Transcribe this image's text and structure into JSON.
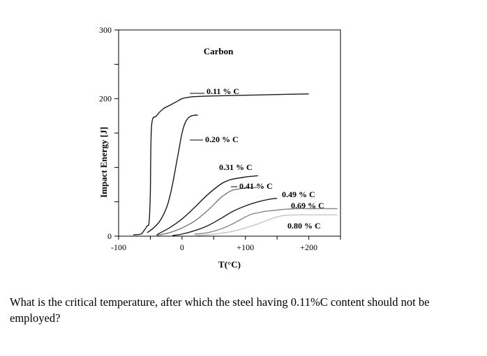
{
  "chart_data": {
    "type": "line",
    "title": "Carbon",
    "xlabel": "T(°C)",
    "ylabel": "Impact Energy [J]",
    "xlim": [
      -100,
      250
    ],
    "ylim": [
      0,
      300
    ],
    "x_ticks": [
      -100,
      0,
      100,
      200
    ],
    "x_tick_labels": [
      "-100",
      "0",
      "+100",
      "+200"
    ],
    "y_ticks": [
      0,
      100,
      200,
      300
    ],
    "y_tick_labels": [
      "0",
      "",
      "200",
      "300"
    ],
    "grid": false,
    "legend": "none",
    "series": [
      {
        "name": "0.11 % C",
        "color": "#1a1a1a",
        "x": [
          -77,
          -65,
          -60,
          -55,
          -52,
          -50,
          -48,
          -40,
          -30,
          -20,
          -10,
          0,
          10,
          20,
          50,
          100,
          150,
          200
        ],
        "y": [
          2,
          3,
          8,
          15,
          20,
          60,
          160,
          175,
          185,
          190,
          195,
          200,
          202,
          203,
          204,
          205,
          206,
          207
        ]
      },
      {
        "name": "0.20 % C",
        "color": "#1a1a1a",
        "x": [
          -55,
          -45,
          -35,
          -25,
          -20,
          -15,
          -10,
          -5,
          0,
          5,
          10,
          15,
          20,
          25
        ],
        "y": [
          5,
          12,
          22,
          40,
          55,
          75,
          100,
          125,
          150,
          165,
          172,
          175,
          176,
          176
        ]
      },
      {
        "name": "0.31 % C",
        "color": "#1a1a1a",
        "x": [
          -40,
          -20,
          0,
          20,
          40,
          60,
          70,
          80,
          100,
          120
        ],
        "y": [
          2,
          12,
          25,
          42,
          60,
          75,
          80,
          83,
          86,
          88
        ]
      },
      {
        "name": "0.41 % C",
        "color": "#777777",
        "x": [
          -40,
          -20,
          0,
          20,
          40,
          60,
          70,
          80,
          100,
          120
        ],
        "y": [
          1,
          5,
          12,
          22,
          37,
          55,
          62,
          67,
          70,
          71
        ]
      },
      {
        "name": "0.49 % C",
        "color": "#1a1a1a",
        "x": [
          -15,
          0,
          20,
          40,
          60,
          80,
          100,
          120,
          140,
          150
        ],
        "y": [
          1,
          3,
          8,
          15,
          25,
          36,
          44,
          50,
          54,
          55
        ]
      },
      {
        "name": "0.69 % C",
        "color": "#888888",
        "x": [
          20,
          40,
          60,
          80,
          100,
          110,
          120,
          130,
          140,
          150,
          160,
          180,
          200,
          245
        ],
        "y": [
          3,
          5,
          10,
          18,
          28,
          32,
          34,
          36,
          37,
          38,
          39,
          40,
          40,
          40
        ]
      },
      {
        "name": "0.80 % C",
        "color": "#c4c4c4",
        "x": [
          20,
          40,
          60,
          80,
          100,
          120,
          140,
          150,
          160,
          180,
          200,
          245
        ],
        "y": [
          1,
          2,
          4,
          7,
          12,
          18,
          25,
          28,
          30,
          31,
          31,
          31
        ]
      }
    ]
  },
  "question": "What is the critical temperature, after which the steel having 0.11%C content should not be employed?"
}
